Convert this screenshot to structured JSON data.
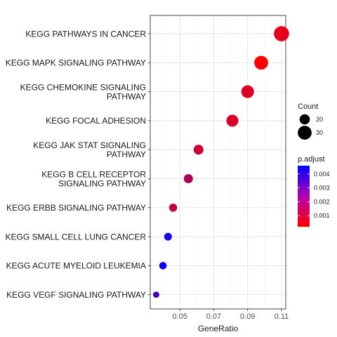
{
  "chart_data": {
    "type": "scatter",
    "xlabel": "GeneRatio",
    "xlim": [
      0.0325,
      0.1125
    ],
    "xticks": [
      0.05,
      0.07,
      0.09,
      0.11
    ],
    "xtick_labels": [
      "0.05",
      "0.07",
      "0.09",
      "0.11"
    ],
    "grid": true,
    "legend_position": "right",
    "size_legend": {
      "title": "Count",
      "entries": [
        {
          "label": "20",
          "value": 20
        },
        {
          "label": "30",
          "value": 30
        }
      ]
    },
    "color_legend": {
      "title": "p.adjust",
      "range": [
        0.0002,
        0.0046
      ],
      "ticks": [
        0.004,
        0.003,
        0.002,
        0.001
      ],
      "tick_labels": [
        "0.004",
        "0.003",
        "0.002",
        "0.001"
      ],
      "low_color": "#FF0000",
      "high_color": "#0000FF"
    },
    "categories": [
      [
        "KEGG PATHWAYS IN CANCER"
      ],
      [
        "KEGG MAPK SIGNALING PATHWAY"
      ],
      [
        "KEGG CHEMOKINE SIGNALING",
        "PATHWAY"
      ],
      [
        "KEGG FOCAL ADHESION"
      ],
      [
        "KEGG JAK STAT SIGNALING",
        "PATHWAY"
      ],
      [
        "KEGG B CELL RECEPTOR",
        "SIGNALING PATHWAY"
      ],
      [
        "KEGG ERBB SIGNALING PATHWAY"
      ],
      [
        "KEGG SMALL CELL LUNG CANCER"
      ],
      [
        "KEGG ACUTE MYELOID LEUKEMIA"
      ],
      [
        "KEGG VEGF SIGNALING PATHWAY"
      ]
    ],
    "points": [
      {
        "x": 0.11,
        "count": 34,
        "p_adjust": 0.0007
      },
      {
        "x": 0.098,
        "count": 30,
        "p_adjust": 0.0002
      },
      {
        "x": 0.09,
        "count": 27,
        "p_adjust": 0.0008
      },
      {
        "x": 0.081,
        "count": 25,
        "p_adjust": 0.0009
      },
      {
        "x": 0.061,
        "count": 19,
        "p_adjust": 0.0011
      },
      {
        "x": 0.055,
        "count": 17,
        "p_adjust": 0.0017
      },
      {
        "x": 0.046,
        "count": 14,
        "p_adjust": 0.0013
      },
      {
        "x": 0.043,
        "count": 13,
        "p_adjust": 0.0042
      },
      {
        "x": 0.04,
        "count": 12,
        "p_adjust": 0.0044
      },
      {
        "x": 0.036,
        "count": 9,
        "p_adjust": 0.0034
      }
    ]
  }
}
